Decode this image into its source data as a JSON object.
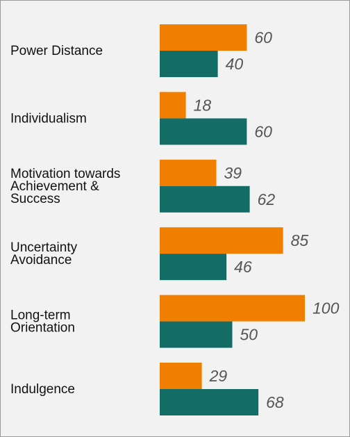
{
  "chart_data": {
    "type": "bar",
    "orientation": "horizontal",
    "categories": [
      [
        "Power Distance"
      ],
      [
        "Individualism"
      ],
      [
        "Motivation towards",
        "Achievement &",
        "Success"
      ],
      [
        "Uncertainty",
        "Avoidance"
      ],
      [
        "Long-term",
        "Orientation"
      ],
      [
        "Indulgence"
      ]
    ],
    "series": [
      {
        "values": [
          60,
          18,
          39,
          85,
          100,
          29
        ],
        "color": "#f07f00"
      },
      {
        "values": [
          40,
          60,
          62,
          46,
          50,
          68
        ],
        "color": "#136c66"
      }
    ],
    "xlim": [
      0,
      100
    ],
    "grid": false,
    "legend": "none"
  }
}
